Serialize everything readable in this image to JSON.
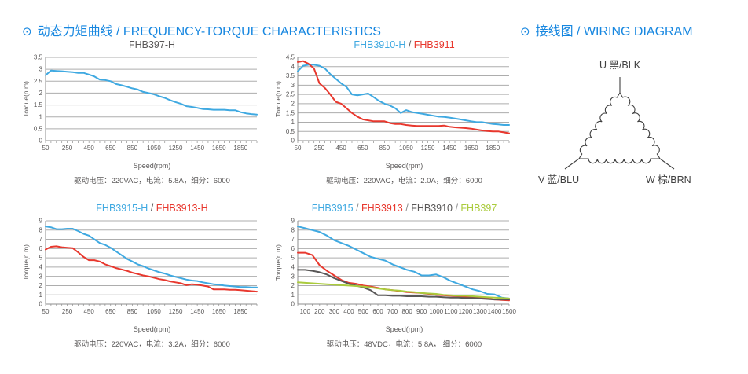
{
  "sections": {
    "curves": {
      "bullet": "⊙",
      "title": "动态力矩曲线 / FREQUENCY-TORQUE CHARACTERISTICS"
    },
    "wiring": {
      "bullet": "⊙",
      "title": "接线图 / WIRING DIAGRAM"
    }
  },
  "colors": {
    "accent_blue": "#1787e0",
    "series_blue": "#3fa9e1",
    "series_red": "#e8382e",
    "series_gray": "#595757",
    "series_green": "#aacb3c",
    "text_gray": "#595757",
    "grid": "#adadad",
    "axis": "#8c8c8c"
  },
  "chart_data": [
    {
      "type": "line",
      "title_parts": [
        {
          "text": "FHB397-H",
          "color": "#595757"
        }
      ],
      "xlabel": "Speed(rpm)",
      "ylabel": "Torque(n.m)",
      "caption": "驱动电压：220VAC，电流：5.8A，细分：6000",
      "xlim": [
        50,
        2000
      ],
      "ylim": [
        0,
        3.5
      ],
      "ytick_step": 0.5,
      "xticks_labeled": [
        50,
        250,
        450,
        650,
        850,
        1050,
        1250,
        1450,
        1650,
        1850
      ],
      "xtick_minor_step": 50,
      "series": [
        {
          "name": "FHB397-H",
          "color": "#3fa9e1",
          "x_start": 50,
          "x_step": 50,
          "y": [
            2.75,
            2.95,
            2.93,
            2.92,
            2.9,
            2.88,
            2.85,
            2.85,
            2.78,
            2.7,
            2.57,
            2.55,
            2.5,
            2.38,
            2.33,
            2.27,
            2.2,
            2.15,
            2.05,
            2.0,
            1.95,
            1.87,
            1.8,
            1.7,
            1.62,
            1.55,
            1.45,
            1.42,
            1.38,
            1.33,
            1.32,
            1.3,
            1.3,
            1.3,
            1.28,
            1.28,
            1.2,
            1.15,
            1.12,
            1.1
          ]
        }
      ]
    },
    {
      "type": "line",
      "title_parts": [
        {
          "text": "FHB3910-H",
          "color": "#3fa9e1"
        },
        {
          "text": " / ",
          "color": "#595757"
        },
        {
          "text": "FHB3911",
          "color": "#e8382e"
        }
      ],
      "xlabel": "Speed(rpm)",
      "ylabel": "Torque(n.m)",
      "caption": "驱动电压：220VAC，电流：2.0A，细分：6000",
      "xlim": [
        50,
        2000
      ],
      "ylim": [
        0,
        4.5
      ],
      "ytick_step": 0.5,
      "xticks_labeled": [
        50,
        250,
        450,
        650,
        850,
        1050,
        1250,
        1450,
        1650,
        1850
      ],
      "xtick_minor_step": 50,
      "series": [
        {
          "name": "FHB3910-H",
          "color": "#3fa9e1",
          "x_start": 50,
          "x_step": 50,
          "y": [
            3.75,
            4.05,
            4.1,
            4.1,
            4.05,
            3.9,
            3.6,
            3.35,
            3.1,
            2.9,
            2.5,
            2.45,
            2.5,
            2.55,
            2.35,
            2.15,
            2.0,
            1.9,
            1.75,
            1.5,
            1.65,
            1.55,
            1.5,
            1.45,
            1.4,
            1.35,
            1.3,
            1.28,
            1.25,
            1.2,
            1.15,
            1.1,
            1.05,
            1.0,
            1.0,
            0.95,
            0.9,
            0.88,
            0.85,
            0.85
          ]
        },
        {
          "name": "FHB3911",
          "color": "#e8382e",
          "x_start": 50,
          "x_step": 50,
          "y": [
            4.25,
            4.3,
            4.15,
            3.9,
            3.1,
            2.85,
            2.5,
            2.1,
            2.0,
            1.75,
            1.5,
            1.3,
            1.15,
            1.1,
            1.05,
            1.05,
            1.05,
            0.95,
            0.9,
            0.9,
            0.85,
            0.82,
            0.8,
            0.8,
            0.8,
            0.8,
            0.8,
            0.82,
            0.75,
            0.72,
            0.7,
            0.68,
            0.65,
            0.6,
            0.55,
            0.52,
            0.5,
            0.5,
            0.45,
            0.4
          ]
        }
      ]
    },
    {
      "type": "line",
      "title_parts": [
        {
          "text": "FHB3915-H",
          "color": "#3fa9e1"
        },
        {
          "text": " / ",
          "color": "#595757"
        },
        {
          "text": "FHB3913-H",
          "color": "#e8382e"
        }
      ],
      "xlabel": "Speed(rpm)",
      "ylabel": "Torque(n.m)",
      "caption": "驱动电压：220VAC，电流：3.2A，细分：6000",
      "xlim": [
        50,
        2000
      ],
      "ylim": [
        0,
        9
      ],
      "ytick_step": 1,
      "xticks_labeled": [
        50,
        250,
        450,
        650,
        850,
        1050,
        1250,
        1450,
        1650,
        1850
      ],
      "xtick_minor_step": 50,
      "series": [
        {
          "name": "FHB3915-H",
          "color": "#3fa9e1",
          "x_start": 50,
          "x_step": 50,
          "y": [
            8.4,
            8.3,
            8.1,
            8.1,
            8.15,
            8.15,
            7.9,
            7.6,
            7.4,
            7.0,
            6.6,
            6.4,
            6.1,
            5.7,
            5.3,
            4.9,
            4.6,
            4.3,
            4.1,
            3.85,
            3.65,
            3.45,
            3.3,
            3.1,
            2.95,
            2.8,
            2.65,
            2.55,
            2.5,
            2.35,
            2.25,
            2.15,
            2.1,
            2.0,
            1.95,
            1.9,
            1.85,
            1.85,
            1.8,
            1.8
          ]
        },
        {
          "name": "FHB3913-H",
          "color": "#e8382e",
          "x_start": 50,
          "x_step": 50,
          "y": [
            5.9,
            6.2,
            6.25,
            6.15,
            6.1,
            6.05,
            5.6,
            5.1,
            4.75,
            4.75,
            4.6,
            4.3,
            4.1,
            3.9,
            3.75,
            3.6,
            3.4,
            3.25,
            3.1,
            3.0,
            2.85,
            2.7,
            2.6,
            2.45,
            2.35,
            2.25,
            2.05,
            2.15,
            2.1,
            2.0,
            1.9,
            1.6,
            1.6,
            1.6,
            1.55,
            1.55,
            1.5,
            1.45,
            1.4,
            1.35
          ]
        }
      ]
    },
    {
      "type": "line",
      "title_parts": [
        {
          "text": "FHB3915",
          "color": "#3fa9e1"
        },
        {
          "text": " / ",
          "color": "#8a8a8a"
        },
        {
          "text": "FHB3913",
          "color": "#e8382e"
        },
        {
          "text": " / ",
          "color": "#8a8a8a"
        },
        {
          "text": "FHB3910",
          "color": "#595757"
        },
        {
          "text": " / ",
          "color": "#8a8a8a"
        },
        {
          "text": "FHB397",
          "color": "#aacb3c"
        }
      ],
      "xlabel": "Speed(rpm)",
      "ylabel": "Torque(n.m)",
      "caption": "驱动电压：48VDC，电流：5.8A， 细分：6000",
      "xlim": [
        50,
        1500
      ],
      "ylim": [
        0,
        9
      ],
      "ytick_step": 1,
      "xticks_labeled": [
        100,
        200,
        300,
        400,
        500,
        600,
        700,
        800,
        900,
        1000,
        1100,
        1200,
        1300,
        1400,
        1500
      ],
      "xtick_minor_step": 50,
      "series": [
        {
          "name": "FHB3915",
          "color": "#3fa9e1",
          "x_start": 50,
          "x_step": 50,
          "y": [
            8.4,
            8.2,
            8.0,
            7.8,
            7.4,
            6.9,
            6.6,
            6.3,
            5.9,
            5.5,
            5.1,
            4.9,
            4.7,
            4.3,
            4.0,
            3.7,
            3.5,
            3.1,
            3.1,
            3.2,
            2.9,
            2.5,
            2.2,
            1.9,
            1.6,
            1.4,
            1.1,
            1.05,
            0.7,
            0.6
          ]
        },
        {
          "name": "FHB3913",
          "color": "#e8382e",
          "x_start": 50,
          "x_step": 50,
          "y": [
            5.55,
            5.55,
            5.3,
            4.2,
            3.6,
            3.1,
            2.6,
            2.3,
            2.2,
            2.0,
            1.9,
            1.75,
            1.6,
            1.5,
            1.4,
            1.3,
            1.25,
            1.2,
            1.1,
            1.0,
            0.95,
            0.9,
            0.85,
            0.8,
            0.75,
            0.7,
            0.6,
            0.5,
            0.45,
            0.4
          ]
        },
        {
          "name": "FHB3910",
          "color": "#595757",
          "x_start": 50,
          "x_step": 50,
          "y": [
            3.7,
            3.7,
            3.6,
            3.45,
            3.2,
            2.8,
            2.5,
            2.2,
            2.0,
            1.8,
            1.5,
            0.95,
            0.95,
            0.9,
            0.9,
            0.85,
            0.85,
            0.85,
            0.8,
            0.8,
            0.75,
            0.7,
            0.7,
            0.65,
            0.65,
            0.6,
            0.55,
            0.5,
            0.5,
            0.5
          ]
        },
        {
          "name": "FHB397",
          "color": "#aacb3c",
          "x_start": 50,
          "x_step": 50,
          "y": [
            2.35,
            2.3,
            2.25,
            2.2,
            2.15,
            2.1,
            2.05,
            2.0,
            1.95,
            1.9,
            1.8,
            1.7,
            1.6,
            1.5,
            1.45,
            1.35,
            1.3,
            1.2,
            1.15,
            1.1,
            1.0,
            0.95,
            0.9,
            0.9,
            0.85,
            0.8,
            0.75,
            0.7,
            0.65,
            0.6
          ]
        }
      ]
    }
  ],
  "wiring_diagram": {
    "type": "delta-connection",
    "coils_per_side": 7,
    "terminals": [
      {
        "position": "top",
        "label": "U 黑/BLK"
      },
      {
        "position": "bottom-left",
        "label": "V 蓝/BLU"
      },
      {
        "position": "bottom-right",
        "label": "W 棕/BRN"
      }
    ]
  }
}
